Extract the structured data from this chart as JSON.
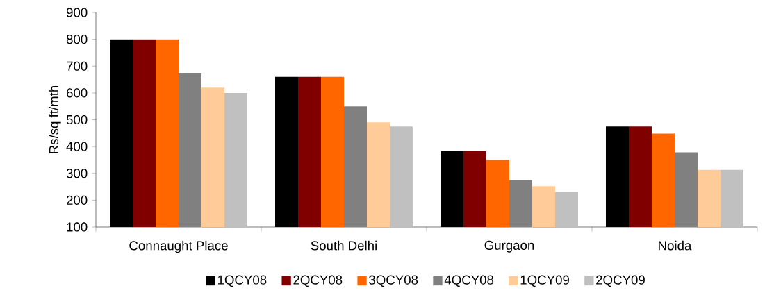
{
  "chart_data": {
    "type": "bar",
    "ylabel": "Rs/sq ft/mth",
    "categories": [
      "Connaught Place",
      "South Delhi",
      "Gurgaon",
      "Noida"
    ],
    "series": [
      {
        "name": "1QCY08",
        "color": "#000000",
        "values": [
          800,
          660,
          383,
          475
        ]
      },
      {
        "name": "2QCY08",
        "color": "#800000",
        "values": [
          800,
          660,
          383,
          475
        ]
      },
      {
        "name": "3QCY08",
        "color": "#ff6600",
        "values": [
          800,
          660,
          350,
          448
        ]
      },
      {
        "name": "4QCY08",
        "color": "#808080",
        "values": [
          675,
          550,
          275,
          378
        ]
      },
      {
        "name": "1QCY09",
        "color": "#ffcc99",
        "values": [
          620,
          490,
          252,
          313
        ]
      },
      {
        "name": "2QCY09",
        "color": "#c0c0c0",
        "values": [
          600,
          475,
          230,
          313
        ]
      }
    ],
    "ylim": [
      100,
      900
    ],
    "yticks": [
      100,
      200,
      300,
      400,
      500,
      600,
      700,
      800,
      900
    ],
    "legend": "bottom"
  }
}
